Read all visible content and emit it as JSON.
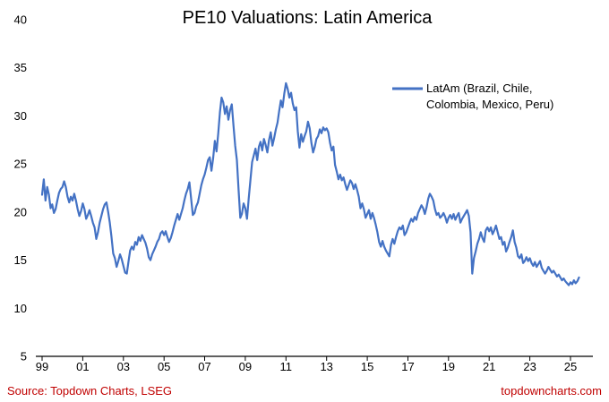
{
  "title": "PE10 Valuations: Latin America",
  "legend": {
    "line1": "LatAm (Brazil, Chile,",
    "line2": "Colombia, Mexico, Peru)"
  },
  "footer": {
    "source": "Source: Topdown Charts, LSEG",
    "website": "topdowncharts.com"
  },
  "colors": {
    "line": "#4472C4",
    "footer_text": "#C00000",
    "axis": "#000000"
  },
  "chart_data": {
    "type": "line",
    "title": "PE10 Valuations: Latin America",
    "xlabel": "",
    "ylabel": "",
    "ylim": [
      5,
      40
    ],
    "y_ticks": [
      5,
      10,
      15,
      20,
      25,
      30,
      35,
      40
    ],
    "x_ticks": [
      "99",
      "01",
      "03",
      "05",
      "07",
      "09",
      "11",
      "13",
      "15",
      "17",
      "19",
      "21",
      "23",
      "25"
    ],
    "x_tick_years": [
      1999,
      2001,
      2003,
      2005,
      2007,
      2009,
      2011,
      2013,
      2015,
      2017,
      2019,
      2021,
      2023,
      2025
    ],
    "grid": false,
    "legend_position": "upper right",
    "series": [
      {
        "name": "LatAm (Brazil, Chile, Colombia, Mexico, Peru)",
        "start_year": 1999,
        "frequency": "monthly",
        "points_per_year": 12,
        "values": [
          21.8,
          23.4,
          21.2,
          22.6,
          21.8,
          20.4,
          20.8,
          19.9,
          20.3,
          21.2,
          22.0,
          22.4,
          22.6,
          23.2,
          22.6,
          21.6,
          21.0,
          21.6,
          21.2,
          21.9,
          21.2,
          20.3,
          19.6,
          20.1,
          20.9,
          20.3,
          19.3,
          19.7,
          20.2,
          19.6,
          18.9,
          18.4,
          17.2,
          17.9,
          18.9,
          19.6,
          20.3,
          20.8,
          21.0,
          20.0,
          18.9,
          17.4,
          15.7,
          15.2,
          14.3,
          14.9,
          15.6,
          15.1,
          14.4,
          13.7,
          13.6,
          14.8,
          16.0,
          16.4,
          16.1,
          16.9,
          16.6,
          17.4,
          17.0,
          17.6,
          17.2,
          16.8,
          16.2,
          15.3,
          15.0,
          15.6,
          16.0,
          16.4,
          16.9,
          17.2,
          17.8,
          18.0,
          17.6,
          18.0,
          17.4,
          16.9,
          17.3,
          17.9,
          18.6,
          19.2,
          19.8,
          19.2,
          19.8,
          20.4,
          21.2,
          21.9,
          22.4,
          23.1,
          21.4,
          19.7,
          19.9,
          20.6,
          21.0,
          21.9,
          22.8,
          23.4,
          23.9,
          24.6,
          25.4,
          25.7,
          24.3,
          25.6,
          27.4,
          26.3,
          28.2,
          30.4,
          31.9,
          31.4,
          30.2,
          31.0,
          29.6,
          30.6,
          31.2,
          29.0,
          26.9,
          25.4,
          22.3,
          19.4,
          19.8,
          20.9,
          20.4,
          19.3,
          21.4,
          23.3,
          25.2,
          25.9,
          26.6,
          25.4,
          26.8,
          27.3,
          26.4,
          27.6,
          27.0,
          26.2,
          27.5,
          28.3,
          26.9,
          27.7,
          28.6,
          29.3,
          30.5,
          31.6,
          30.9,
          32.3,
          33.4,
          32.8,
          31.9,
          32.4,
          31.3,
          30.6,
          30.9,
          28.4,
          26.7,
          28.1,
          27.3,
          27.9,
          28.4,
          29.4,
          28.7,
          27.2,
          26.2,
          26.8,
          27.6,
          27.9,
          28.6,
          28.2,
          28.8,
          28.5,
          28.7,
          28.3,
          27.2,
          26.4,
          26.8,
          24.9,
          24.2,
          23.4,
          23.9,
          23.3,
          23.6,
          22.9,
          22.3,
          22.8,
          23.3,
          23.0,
          22.4,
          22.9,
          22.3,
          21.6,
          20.4,
          20.9,
          20.3,
          19.4,
          19.8,
          20.2,
          19.3,
          19.9,
          19.4,
          18.7,
          17.9,
          16.9,
          16.4,
          17.0,
          16.4,
          16.0,
          15.7,
          15.4,
          16.6,
          17.2,
          16.7,
          17.4,
          18.0,
          18.4,
          18.2,
          18.6,
          17.6,
          17.9,
          18.4,
          18.9,
          19.3,
          19.0,
          19.5,
          19.2,
          19.9,
          20.3,
          20.7,
          20.4,
          19.8,
          20.5,
          21.4,
          21.9,
          21.6,
          21.2,
          20.3,
          19.7,
          19.9,
          19.4,
          19.6,
          19.9,
          19.5,
          18.9,
          19.4,
          19.7,
          19.3,
          19.8,
          19.2,
          19.6,
          19.9,
          18.9,
          19.3,
          19.6,
          19.9,
          20.2,
          19.6,
          17.9,
          13.6,
          15.2,
          15.9,
          16.7,
          17.2,
          17.9,
          17.3,
          16.9,
          18.1,
          18.4,
          18.0,
          18.4,
          17.7,
          18.1,
          18.6,
          17.9,
          17.2,
          17.4,
          16.6,
          16.9,
          15.9,
          16.3,
          16.9,
          17.4,
          18.1,
          16.9,
          16.3,
          15.4,
          15.2,
          15.6,
          14.7,
          14.9,
          15.3,
          14.9,
          15.2,
          14.7,
          14.4,
          14.8,
          14.3,
          14.6,
          14.9,
          14.2,
          13.9,
          13.6,
          13.9,
          14.3,
          14.0,
          13.7,
          13.9,
          13.6,
          13.3,
          13.5,
          13.2,
          12.9,
          13.1,
          12.8,
          12.6,
          12.4,
          12.7,
          12.5,
          12.9,
          12.6,
          12.8,
          13.2
        ]
      }
    ]
  }
}
